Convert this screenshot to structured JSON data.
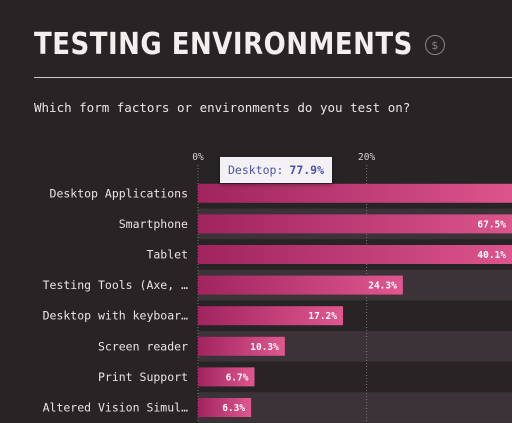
{
  "header": {
    "title": "TESTING ENVIRONMENTS",
    "currency_icon": "$"
  },
  "question": "Which form factors or environments do you test on?",
  "tooltip": {
    "label": "Desktop:",
    "value": "77.9%"
  },
  "colors": {
    "bar_start": "#a0245e",
    "bar_end": "#e0578f",
    "track_alt": "#3b3337",
    "background": "#282426"
  },
  "chart_data": {
    "type": "bar",
    "orientation": "horizontal",
    "categories": [
      "Desktop Applications",
      "Smartphone",
      "Tablet",
      "Testing Tools (Axe, …",
      "Desktop with keyboar…",
      "Screen reader",
      "Print Support",
      "Altered Vision Simul…"
    ],
    "values": [
      77.9,
      67.5,
      40.1,
      24.3,
      17.2,
      10.3,
      6.7,
      6.3
    ],
    "value_labels": [
      "",
      "67.5%",
      "40.1%",
      "24.3%",
      "17.2%",
      "10.3%",
      "6.7%",
      "6.3%"
    ],
    "x_ticks": [
      0,
      20
    ],
    "x_tick_labels": [
      "0%",
      "20%"
    ],
    "xlim": [
      0,
      100
    ],
    "grid": true
  }
}
